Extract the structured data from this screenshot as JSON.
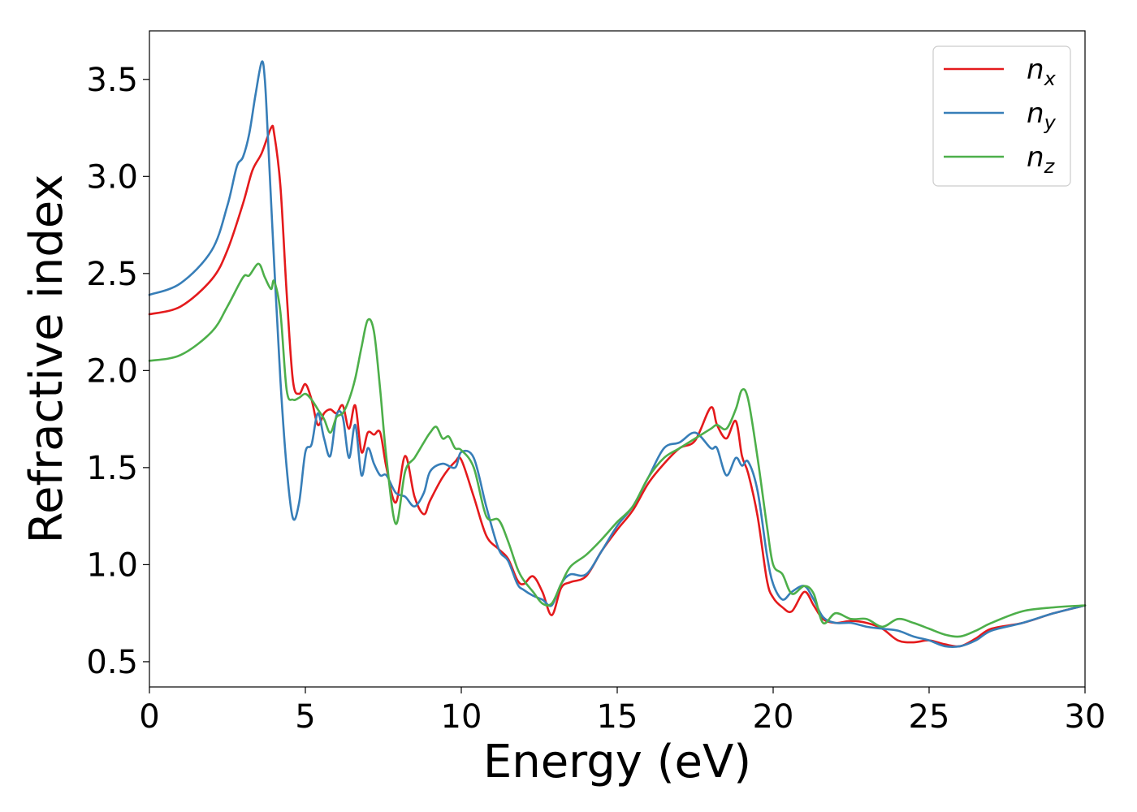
{
  "chart_data": {
    "type": "line",
    "xlabel": "Energy (eV)",
    "ylabel": "Refractive index",
    "xlim": [
      0,
      30
    ],
    "ylim": [
      0.37,
      3.75
    ],
    "xticks": [
      0,
      5,
      10,
      15,
      20,
      25,
      30
    ],
    "yticks": [
      0.5,
      1.0,
      1.5,
      2.0,
      2.5,
      3.0,
      3.5
    ],
    "xtick_labels": [
      "0",
      "5",
      "10",
      "15",
      "20",
      "25",
      "30"
    ],
    "ytick_labels": [
      "0.5",
      "1.0",
      "1.5",
      "2.0",
      "2.5",
      "3.0",
      "3.5"
    ],
    "grid": false,
    "legend_position": "top-right",
    "series": [
      {
        "name": "n_x",
        "label_base": "n",
        "label_sub": "x",
        "color": "#e41a1c",
        "x": [
          0,
          1,
          2,
          2.5,
          3,
          3.3,
          3.6,
          3.9,
          4.0,
          4.2,
          4.4,
          4.6,
          4.8,
          5.0,
          5.2,
          5.4,
          5.6,
          5.8,
          6.0,
          6.2,
          6.4,
          6.6,
          6.8,
          7.0,
          7.2,
          7.4,
          7.6,
          7.9,
          8.2,
          8.5,
          8.8,
          9.0,
          9.4,
          9.8,
          10.0,
          10.4,
          10.8,
          11.2,
          11.5,
          11.8,
          12.0,
          12.3,
          12.6,
          12.9,
          13.2,
          13.5,
          14.0,
          14.5,
          15.0,
          15.5,
          16.0,
          16.5,
          17.0,
          17.5,
          18.0,
          18.2,
          18.5,
          18.8,
          19.0,
          19.2,
          19.5,
          19.8,
          20.0,
          20.3,
          20.6,
          21.0,
          21.3,
          21.6,
          22.0,
          22.5,
          23.0,
          23.5,
          24.0,
          24.5,
          25.0,
          25.5,
          26.0,
          26.5,
          27.0,
          28.0,
          29.0,
          30.0
        ],
        "y": [
          2.29,
          2.33,
          2.47,
          2.62,
          2.86,
          3.03,
          3.12,
          3.25,
          3.22,
          2.95,
          2.4,
          1.95,
          1.88,
          1.93,
          1.85,
          1.72,
          1.78,
          1.8,
          1.78,
          1.82,
          1.7,
          1.82,
          1.58,
          1.68,
          1.67,
          1.68,
          1.5,
          1.32,
          1.56,
          1.35,
          1.26,
          1.33,
          1.45,
          1.53,
          1.54,
          1.35,
          1.15,
          1.08,
          1.03,
          0.92,
          0.9,
          0.94,
          0.86,
          0.74,
          0.88,
          0.91,
          0.94,
          1.07,
          1.18,
          1.28,
          1.42,
          1.52,
          1.6,
          1.64,
          1.81,
          1.72,
          1.65,
          1.74,
          1.56,
          1.47,
          1.25,
          0.92,
          0.83,
          0.78,
          0.76,
          0.86,
          0.79,
          0.72,
          0.7,
          0.71,
          0.7,
          0.67,
          0.61,
          0.6,
          0.61,
          0.59,
          0.58,
          0.62,
          0.67,
          0.7,
          0.75,
          0.79
        ]
      },
      {
        "name": "n_y",
        "label_base": "n",
        "label_sub": "y",
        "color": "#377eb8",
        "x": [
          0,
          1,
          2,
          2.5,
          2.8,
          3.0,
          3.2,
          3.4,
          3.6,
          3.7,
          3.8,
          4.0,
          4.2,
          4.4,
          4.6,
          4.8,
          5.0,
          5.2,
          5.4,
          5.6,
          5.8,
          6.0,
          6.2,
          6.4,
          6.6,
          6.8,
          7.0,
          7.2,
          7.4,
          7.6,
          7.9,
          8.2,
          8.5,
          8.8,
          9.0,
          9.4,
          9.8,
          10.0,
          10.4,
          10.8,
          11.2,
          11.5,
          11.8,
          12.0,
          12.3,
          12.6,
          12.9,
          13.2,
          13.5,
          14.0,
          14.5,
          15.0,
          15.5,
          16.0,
          16.5,
          17.0,
          17.5,
          18.0,
          18.2,
          18.5,
          18.8,
          19.0,
          19.2,
          19.5,
          19.8,
          20.0,
          20.3,
          20.6,
          21.0,
          21.3,
          21.6,
          22.0,
          22.5,
          23.0,
          23.5,
          24.0,
          24.5,
          25.0,
          25.5,
          26.0,
          26.5,
          27.0,
          28.0,
          29.0,
          30.0
        ],
        "y": [
          2.39,
          2.45,
          2.62,
          2.85,
          3.05,
          3.1,
          3.22,
          3.42,
          3.59,
          3.5,
          3.2,
          2.55,
          1.95,
          1.5,
          1.24,
          1.32,
          1.58,
          1.62,
          1.78,
          1.65,
          1.56,
          1.77,
          1.76,
          1.55,
          1.72,
          1.46,
          1.6,
          1.52,
          1.46,
          1.46,
          1.37,
          1.35,
          1.3,
          1.37,
          1.48,
          1.52,
          1.5,
          1.58,
          1.55,
          1.3,
          1.08,
          1.02,
          0.9,
          0.87,
          0.84,
          0.82,
          0.79,
          0.9,
          0.95,
          0.95,
          1.07,
          1.2,
          1.3,
          1.45,
          1.6,
          1.63,
          1.68,
          1.6,
          1.6,
          1.46,
          1.55,
          1.51,
          1.53,
          1.38,
          1.05,
          0.9,
          0.82,
          0.86,
          0.89,
          0.82,
          0.73,
          0.7,
          0.7,
          0.68,
          0.67,
          0.66,
          0.63,
          0.61,
          0.58,
          0.58,
          0.61,
          0.66,
          0.7,
          0.75,
          0.79
        ]
      },
      {
        "name": "n_z",
        "label_base": "n",
        "label_sub": "z",
        "color": "#4daf4a",
        "x": [
          0,
          1,
          2,
          2.5,
          3.0,
          3.2,
          3.5,
          3.7,
          3.9,
          4.0,
          4.2,
          4.4,
          4.6,
          4.8,
          5.0,
          5.2,
          5.4,
          5.6,
          5.8,
          6.0,
          6.2,
          6.4,
          6.6,
          6.8,
          7.0,
          7.2,
          7.4,
          7.6,
          7.9,
          8.2,
          8.5,
          8.8,
          9.0,
          9.2,
          9.4,
          9.6,
          9.8,
          10.0,
          10.4,
          10.8,
          11.2,
          11.5,
          11.8,
          12.0,
          12.3,
          12.6,
          12.9,
          13.2,
          13.5,
          14.0,
          14.5,
          15.0,
          15.5,
          16.0,
          16.5,
          17.0,
          17.5,
          18.0,
          18.2,
          18.5,
          18.8,
          19.0,
          19.2,
          19.5,
          19.8,
          20.0,
          20.3,
          20.6,
          21.0,
          21.3,
          21.6,
          22.0,
          22.5,
          23.0,
          23.5,
          24.0,
          24.5,
          25.0,
          25.5,
          26.0,
          26.5,
          27.0,
          28.0,
          29.0,
          30.0
        ],
        "y": [
          2.05,
          2.08,
          2.2,
          2.33,
          2.48,
          2.49,
          2.55,
          2.48,
          2.42,
          2.46,
          2.3,
          1.9,
          1.85,
          1.86,
          1.88,
          1.85,
          1.8,
          1.75,
          1.68,
          1.76,
          1.78,
          1.85,
          1.96,
          2.12,
          2.26,
          2.2,
          1.9,
          1.55,
          1.21,
          1.48,
          1.55,
          1.63,
          1.68,
          1.71,
          1.65,
          1.66,
          1.6,
          1.59,
          1.5,
          1.25,
          1.23,
          1.12,
          0.98,
          0.92,
          0.86,
          0.8,
          0.8,
          0.9,
          0.99,
          1.05,
          1.13,
          1.22,
          1.3,
          1.45,
          1.55,
          1.6,
          1.65,
          1.7,
          1.72,
          1.7,
          1.8,
          1.9,
          1.85,
          1.55,
          1.2,
          1.0,
          0.95,
          0.85,
          0.89,
          0.85,
          0.7,
          0.75,
          0.72,
          0.72,
          0.68,
          0.72,
          0.7,
          0.67,
          0.64,
          0.63,
          0.66,
          0.7,
          0.76,
          0.78,
          0.79
        ]
      }
    ]
  }
}
